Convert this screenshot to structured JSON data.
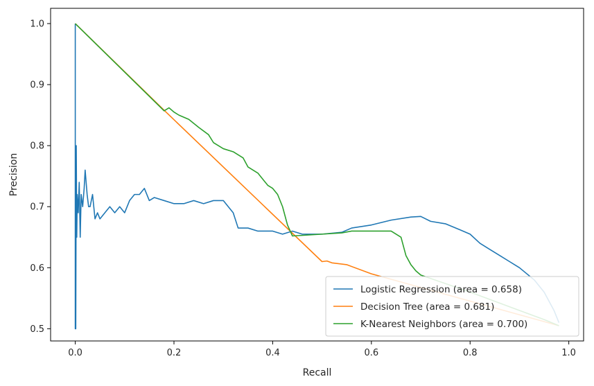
{
  "chart_data": {
    "type": "line",
    "title": "",
    "xlabel": "Recall",
    "ylabel": "Precision",
    "xlim": [
      -0.05,
      1.03
    ],
    "ylim": [
      0.48,
      1.025
    ],
    "xticks": [
      0.0,
      0.2,
      0.4,
      0.6,
      0.8,
      1.0
    ],
    "xtick_labels": [
      "0.0",
      "0.2",
      "0.4",
      "0.6",
      "0.8",
      "1.0"
    ],
    "yticks": [
      0.5,
      0.6,
      0.7,
      0.8,
      0.9,
      1.0
    ],
    "ytick_labels": [
      "0.5",
      "0.6",
      "0.7",
      "0.8",
      "0.9",
      "1.0"
    ],
    "grid": false,
    "legend": "lower-right",
    "series": [
      {
        "name": "Logistic Regression (area = 0.658)",
        "color": "#1f77b4",
        "x": [
          0.0,
          0.0,
          0.001,
          0.002,
          0.003,
          0.004,
          0.006,
          0.008,
          0.01,
          0.012,
          0.015,
          0.018,
          0.02,
          0.024,
          0.027,
          0.03,
          0.035,
          0.04,
          0.045,
          0.05,
          0.06,
          0.07,
          0.08,
          0.09,
          0.1,
          0.11,
          0.12,
          0.13,
          0.14,
          0.15,
          0.16,
          0.18,
          0.2,
          0.22,
          0.24,
          0.26,
          0.28,
          0.29,
          0.3,
          0.31,
          0.32,
          0.33,
          0.35,
          0.37,
          0.4,
          0.42,
          0.44,
          0.46,
          0.5,
          0.54,
          0.56,
          0.6,
          0.64,
          0.68,
          0.7,
          0.72,
          0.75,
          0.78,
          0.8,
          0.82,
          0.84,
          0.86,
          0.88,
          0.9,
          0.93,
          0.95,
          0.97,
          0.98
        ],
        "y": [
          1.0,
          0.5,
          0.5,
          0.8,
          0.65,
          0.72,
          0.69,
          0.74,
          0.65,
          0.72,
          0.7,
          0.73,
          0.76,
          0.72,
          0.7,
          0.7,
          0.72,
          0.68,
          0.69,
          0.68,
          0.69,
          0.7,
          0.69,
          0.7,
          0.69,
          0.71,
          0.72,
          0.72,
          0.73,
          0.71,
          0.715,
          0.71,
          0.705,
          0.705,
          0.71,
          0.705,
          0.71,
          0.71,
          0.71,
          0.7,
          0.69,
          0.665,
          0.665,
          0.66,
          0.66,
          0.655,
          0.66,
          0.655,
          0.655,
          0.658,
          0.665,
          0.67,
          0.678,
          0.683,
          0.684,
          0.676,
          0.672,
          0.662,
          0.655,
          0.64,
          0.63,
          0.62,
          0.61,
          0.6,
          0.58,
          0.56,
          0.53,
          0.51
        ]
      },
      {
        "name": "Decision Tree (area = 0.681)",
        "color": "#ff7f0e",
        "x": [
          0.0,
          0.18,
          0.5,
          0.51,
          0.52,
          0.55,
          0.6,
          0.98
        ],
        "y": [
          1.0,
          0.858,
          0.61,
          0.611,
          0.608,
          0.605,
          0.59,
          0.505
        ]
      },
      {
        "name": "K-Nearest Neighbors (area = 0.700)",
        "color": "#2ca02c",
        "x": [
          0.0,
          0.18,
          0.19,
          0.2,
          0.21,
          0.23,
          0.25,
          0.27,
          0.28,
          0.3,
          0.32,
          0.34,
          0.35,
          0.37,
          0.39,
          0.4,
          0.41,
          0.42,
          0.43,
          0.44,
          0.5,
          0.54,
          0.56,
          0.6,
          0.64,
          0.66,
          0.67,
          0.68,
          0.69,
          0.7,
          0.8,
          0.9,
          0.95,
          0.98
        ],
        "y": [
          1.0,
          0.857,
          0.862,
          0.855,
          0.85,
          0.843,
          0.83,
          0.818,
          0.805,
          0.795,
          0.79,
          0.78,
          0.765,
          0.755,
          0.735,
          0.73,
          0.72,
          0.7,
          0.67,
          0.652,
          0.655,
          0.657,
          0.66,
          0.66,
          0.66,
          0.65,
          0.62,
          0.605,
          0.595,
          0.588,
          0.56,
          0.53,
          0.515,
          0.505
        ]
      }
    ]
  }
}
